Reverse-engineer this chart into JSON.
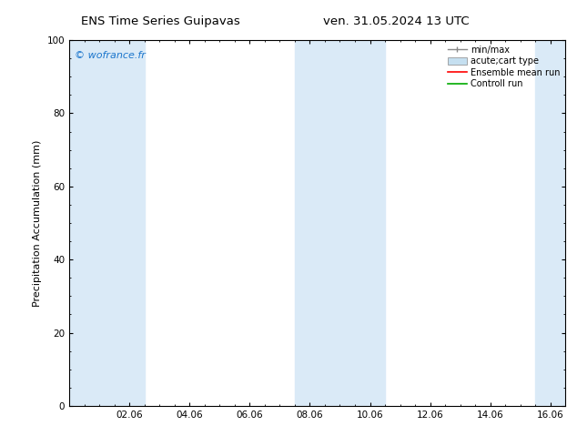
{
  "title_left": "ENS Time Series Guipavas",
  "title_right": "ven. 31.05.2024 13 UTC",
  "ylabel": "Precipitation Accumulation (mm)",
  "watermark": "© wofrance.fr",
  "watermark_color": "#1a75cc",
  "ylim": [
    0,
    100
  ],
  "xlim_start": 0.0,
  "xlim_end": 16.5,
  "xtick_positions": [
    2.0,
    4.0,
    6.0,
    8.0,
    10.0,
    12.0,
    14.0,
    16.0
  ],
  "xtick_labels": [
    "02.06",
    "04.06",
    "06.06",
    "08.06",
    "10.06",
    "12.06",
    "14.06",
    "16.06"
  ],
  "ytick_positions": [
    0,
    20,
    40,
    60,
    80,
    100
  ],
  "ytick_labels": [
    "0",
    "20",
    "40",
    "60",
    "80",
    "100"
  ],
  "shaded_bands": [
    {
      "xmin": 0.0,
      "xmax": 2.5
    },
    {
      "xmin": 7.5,
      "xmax": 10.5
    },
    {
      "xmin": 15.5,
      "xmax": 16.5
    }
  ],
  "band_color": "#daeaf7",
  "band_alpha": 1.0,
  "legend_labels": [
    "min/max",
    "acute;cart type",
    "Ensemble mean run",
    "Controll run"
  ],
  "legend_minmax_color": "#888888",
  "legend_cart_color": "#c5dff0",
  "legend_ensemble_color": "#ff0000",
  "legend_control_color": "#00aa00",
  "background_color": "#ffffff",
  "title_fontsize": 9.5,
  "tick_fontsize": 7.5,
  "label_fontsize": 8,
  "watermark_fontsize": 8,
  "legend_fontsize": 7
}
